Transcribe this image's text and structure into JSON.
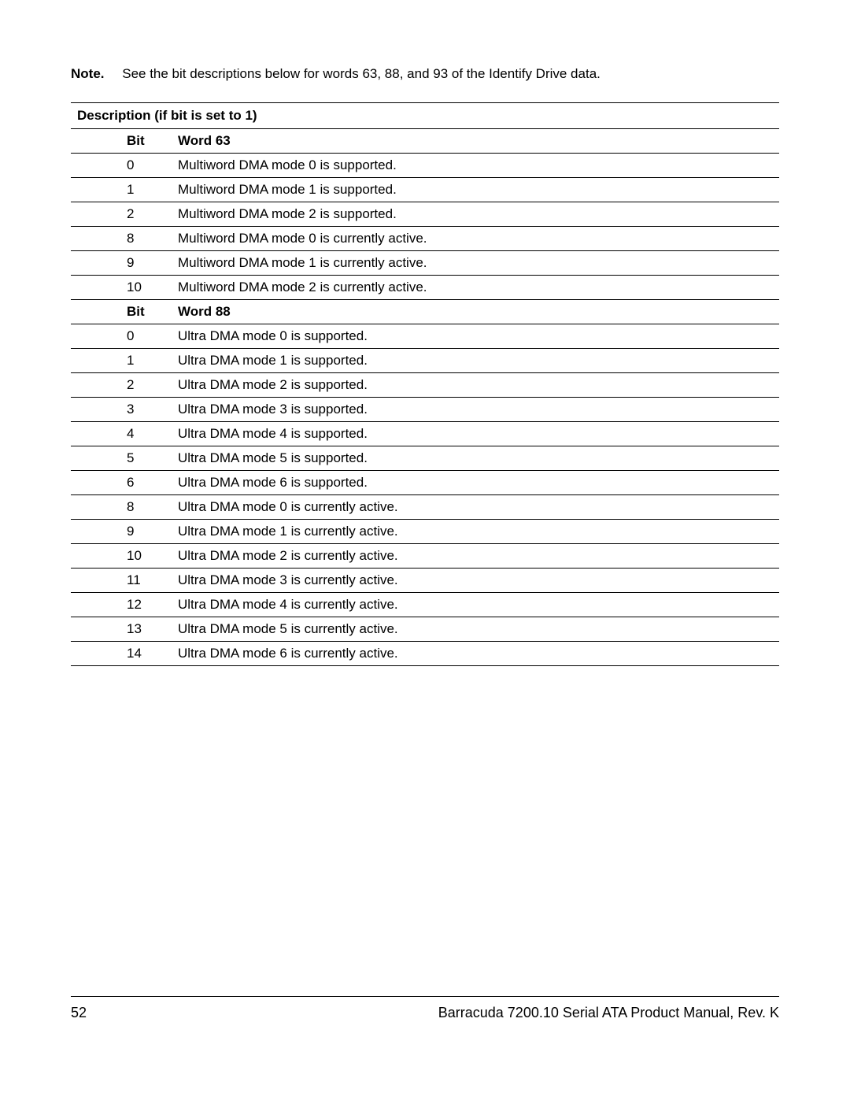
{
  "note": {
    "label": "Note.",
    "text": "See the bit descriptions below for words 63, 88, and 93 of the Identify Drive data."
  },
  "table": {
    "title": "Description (if bit is set to 1)",
    "sections": [
      {
        "bit_header": "Bit",
        "word_header": "Word 63",
        "rows": [
          {
            "bit": "0",
            "desc": "Multiword DMA mode 0 is supported."
          },
          {
            "bit": "1",
            "desc": "Multiword DMA mode 1 is supported."
          },
          {
            "bit": "2",
            "desc": "Multiword DMA mode 2 is supported."
          },
          {
            "bit": "8",
            "desc": "Multiword DMA mode 0 is currently active."
          },
          {
            "bit": "9",
            "desc": "Multiword DMA mode 1 is currently active."
          },
          {
            "bit": "10",
            "desc": "Multiword DMA mode 2 is currently active."
          }
        ]
      },
      {
        "bit_header": "Bit",
        "word_header": "Word 88",
        "rows": [
          {
            "bit": "0",
            "desc": "Ultra DMA mode 0 is supported."
          },
          {
            "bit": "1",
            "desc": "Ultra DMA mode 1 is supported."
          },
          {
            "bit": "2",
            "desc": "Ultra DMA mode 2 is supported."
          },
          {
            "bit": "3",
            "desc": "Ultra DMA mode 3 is supported."
          },
          {
            "bit": "4",
            "desc": "Ultra DMA mode 4 is supported."
          },
          {
            "bit": "5",
            "desc": "Ultra DMA mode 5 is supported."
          },
          {
            "bit": "6",
            "desc": "Ultra DMA mode 6 is supported."
          },
          {
            "bit": "8",
            "desc": "Ultra DMA mode 0 is currently active."
          },
          {
            "bit": "9",
            "desc": "Ultra DMA mode 1 is currently active."
          },
          {
            "bit": "10",
            "desc": "Ultra DMA mode 2 is currently active."
          },
          {
            "bit": "11",
            "desc": "Ultra DMA mode 3 is currently active."
          },
          {
            "bit": "12",
            "desc": "Ultra DMA mode 4 is currently active."
          },
          {
            "bit": "13",
            "desc": "Ultra DMA mode 5 is currently active."
          },
          {
            "bit": "14",
            "desc": "Ultra DMA mode 6 is currently active."
          }
        ]
      }
    ]
  },
  "footer": {
    "page_number": "52",
    "title": "Barracuda 7200.10 Serial ATA Product Manual, Rev. K"
  }
}
